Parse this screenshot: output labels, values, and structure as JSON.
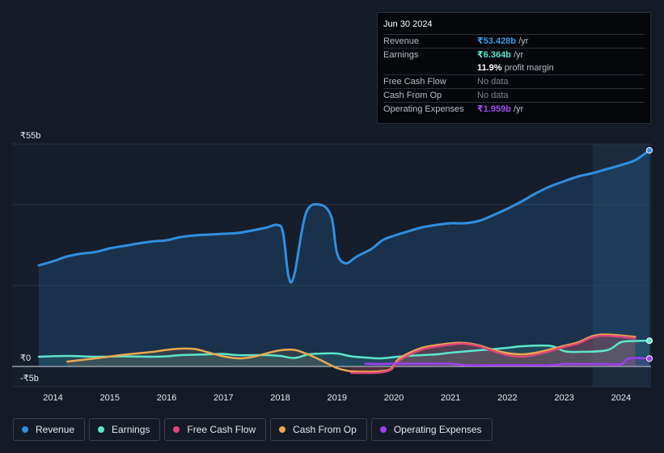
{
  "tooltip": {
    "date": "Jun 30 2024",
    "rows": [
      {
        "label": "Revenue",
        "value": "₹53.428b",
        "suffix": " /yr",
        "color": "#3b9be6"
      },
      {
        "label": "Earnings",
        "value": "₹6.364b",
        "suffix": " /yr",
        "color": "#5de6cc"
      },
      {
        "label": "",
        "value": "11.9%",
        "suffix": " profit margin",
        "color": "#ffffff"
      },
      {
        "label": "Free Cash Flow",
        "value": "",
        "suffix": "No data",
        "color": "#7d8590"
      },
      {
        "label": "Cash From Op",
        "value": "",
        "suffix": "No data",
        "color": "#7d8590"
      },
      {
        "label": "Operating Expenses",
        "value": "₹1.959b",
        "suffix": " /yr",
        "color": "#a24ff0"
      }
    ]
  },
  "legend": [
    {
      "label": "Revenue",
      "color": "#2f8fe0"
    },
    {
      "label": "Earnings",
      "color": "#5de6cc"
    },
    {
      "label": "Free Cash Flow",
      "color": "#e0467a"
    },
    {
      "label": "Cash From Op",
      "color": "#eaa84f"
    },
    {
      "label": "Operating Expenses",
      "color": "#9b3ff0"
    }
  ],
  "chart_data": {
    "type": "area",
    "ylim": [
      -5,
      55
    ],
    "y_ticks": [
      "₹55b",
      "₹0",
      "-₹5b"
    ],
    "x_ticks": [
      "2014",
      "2015",
      "2016",
      "2017",
      "2018",
      "2019",
      "2020",
      "2021",
      "2022",
      "2023",
      "2024"
    ],
    "series": [
      {
        "name": "Revenue",
        "color": "#2f8fe0",
        "points": [
          [
            2013.75,
            25
          ],
          [
            2014.0,
            26
          ],
          [
            2014.25,
            27.2
          ],
          [
            2014.5,
            27.9
          ],
          [
            2014.75,
            28.3
          ],
          [
            2015.0,
            29.2
          ],
          [
            2015.25,
            29.8
          ],
          [
            2015.5,
            30.4
          ],
          [
            2015.75,
            30.9
          ],
          [
            2016.0,
            31.2
          ],
          [
            2016.25,
            32
          ],
          [
            2016.5,
            32.4
          ],
          [
            2016.75,
            32.6
          ],
          [
            2017.0,
            32.8
          ],
          [
            2017.25,
            33
          ],
          [
            2017.5,
            33.6
          ],
          [
            2017.75,
            34.3
          ],
          [
            2017.95,
            35
          ],
          [
            2018.05,
            33
          ],
          [
            2018.15,
            22
          ],
          [
            2018.25,
            22.8
          ],
          [
            2018.45,
            37.8
          ],
          [
            2018.7,
            40
          ],
          [
            2018.9,
            37
          ],
          [
            2019.0,
            28
          ],
          [
            2019.15,
            25.5
          ],
          [
            2019.35,
            27.2
          ],
          [
            2019.6,
            29
          ],
          [
            2019.8,
            31.2
          ],
          [
            2020.0,
            32.3
          ],
          [
            2020.25,
            33.4
          ],
          [
            2020.5,
            34.4
          ],
          [
            2020.75,
            35
          ],
          [
            2021.0,
            35.4
          ],
          [
            2021.25,
            35.4
          ],
          [
            2021.5,
            36
          ],
          [
            2021.75,
            37.4
          ],
          [
            2022.0,
            39
          ],
          [
            2022.25,
            40.8
          ],
          [
            2022.5,
            42.8
          ],
          [
            2022.75,
            44.5
          ],
          [
            2023.0,
            45.8
          ],
          [
            2023.25,
            47
          ],
          [
            2023.5,
            47.8
          ],
          [
            2023.75,
            48.8
          ],
          [
            2024.0,
            49.8
          ],
          [
            2024.25,
            51
          ],
          [
            2024.5,
            53.43
          ]
        ]
      },
      {
        "name": "Earnings",
        "color": "#5de6cc",
        "points": [
          [
            2013.75,
            2.4
          ],
          [
            2014.25,
            2.6
          ],
          [
            2014.75,
            2.4
          ],
          [
            2015.25,
            2.5
          ],
          [
            2015.75,
            2.4
          ],
          [
            2016.0,
            2.5
          ],
          [
            2016.25,
            2.8
          ],
          [
            2016.75,
            3
          ],
          [
            2017.0,
            3.1
          ],
          [
            2017.25,
            2.8
          ],
          [
            2017.75,
            2.8
          ],
          [
            2018.0,
            2.6
          ],
          [
            2018.25,
            2.1
          ],
          [
            2018.5,
            3
          ],
          [
            2018.75,
            3.2
          ],
          [
            2019.0,
            3.2
          ],
          [
            2019.25,
            2.5
          ],
          [
            2019.5,
            2.2
          ],
          [
            2019.75,
            2
          ],
          [
            2020.0,
            2.3
          ],
          [
            2020.25,
            2.6
          ],
          [
            2020.75,
            3
          ],
          [
            2021.0,
            3.4
          ],
          [
            2021.5,
            4
          ],
          [
            2022.0,
            4.6
          ],
          [
            2022.25,
            5
          ],
          [
            2022.75,
            5.1
          ],
          [
            2023.0,
            3.8
          ],
          [
            2023.25,
            3.6
          ],
          [
            2023.75,
            4
          ],
          [
            2024.0,
            6
          ],
          [
            2024.25,
            6.3
          ],
          [
            2024.5,
            6.36
          ]
        ]
      },
      {
        "name": "Cash From Op",
        "color": "#eaa84f",
        "points": [
          [
            2014.25,
            1.2
          ],
          [
            2014.75,
            2
          ],
          [
            2015.25,
            2.9
          ],
          [
            2015.75,
            3.6
          ],
          [
            2016.0,
            4.1
          ],
          [
            2016.25,
            4.4
          ],
          [
            2016.5,
            4.3
          ],
          [
            2016.75,
            3.4
          ],
          [
            2017.0,
            2.5
          ],
          [
            2017.25,
            2
          ],
          [
            2017.5,
            2.3
          ],
          [
            2017.75,
            3.2
          ],
          [
            2018.0,
            4
          ],
          [
            2018.25,
            4.1
          ],
          [
            2018.5,
            2.9
          ],
          [
            2018.75,
            1.3
          ],
          [
            2019.0,
            -0.4
          ],
          [
            2019.25,
            -1.2
          ],
          [
            2019.5,
            -1.3
          ],
          [
            2019.75,
            -1.2
          ],
          [
            2019.95,
            -0.6
          ],
          [
            2020.1,
            2
          ],
          [
            2020.5,
            4.6
          ],
          [
            2021.0,
            5.7
          ],
          [
            2021.25,
            5.8
          ],
          [
            2021.5,
            5.2
          ],
          [
            2021.75,
            4.1
          ],
          [
            2022.0,
            3.3
          ],
          [
            2022.25,
            3
          ],
          [
            2022.5,
            3.4
          ],
          [
            2022.75,
            4.2
          ],
          [
            2023.0,
            5.1
          ],
          [
            2023.25,
            6
          ],
          [
            2023.5,
            7.5
          ],
          [
            2023.75,
            7.9
          ],
          [
            2024.25,
            7.3
          ]
        ]
      },
      {
        "name": "Free Cash Flow",
        "color": "#e0467a",
        "points": [
          [
            2019.25,
            -1.6
          ],
          [
            2019.5,
            -1.6
          ],
          [
            2019.75,
            -1.5
          ],
          [
            2019.95,
            -0.8
          ],
          [
            2020.1,
            1.5
          ],
          [
            2020.5,
            4.2
          ],
          [
            2021.0,
            5.4
          ],
          [
            2021.25,
            5.6
          ],
          [
            2021.5,
            5
          ],
          [
            2021.75,
            3.8
          ],
          [
            2022.0,
            2.8
          ],
          [
            2022.25,
            2.4
          ],
          [
            2022.5,
            2.9
          ],
          [
            2022.75,
            3.8
          ],
          [
            2023.0,
            4.8
          ],
          [
            2023.25,
            5.7
          ],
          [
            2023.5,
            7.2
          ],
          [
            2023.75,
            7.6
          ],
          [
            2024.25,
            7
          ]
        ]
      },
      {
        "name": "Operating Expenses",
        "color": "#9b3ff0",
        "points": [
          [
            2019.5,
            0.7
          ],
          [
            2019.75,
            0.6
          ],
          [
            2020.0,
            0.7
          ],
          [
            2020.5,
            0.7
          ],
          [
            2021.0,
            0.7
          ],
          [
            2021.25,
            0.3
          ],
          [
            2021.75,
            0.3
          ],
          [
            2022.25,
            0.3
          ],
          [
            2022.75,
            0.3
          ],
          [
            2023.0,
            0.6
          ],
          [
            2023.25,
            0.6
          ],
          [
            2023.75,
            0.6
          ],
          [
            2024.0,
            0.6
          ],
          [
            2024.15,
            2
          ],
          [
            2024.5,
            1.96
          ]
        ]
      }
    ]
  }
}
